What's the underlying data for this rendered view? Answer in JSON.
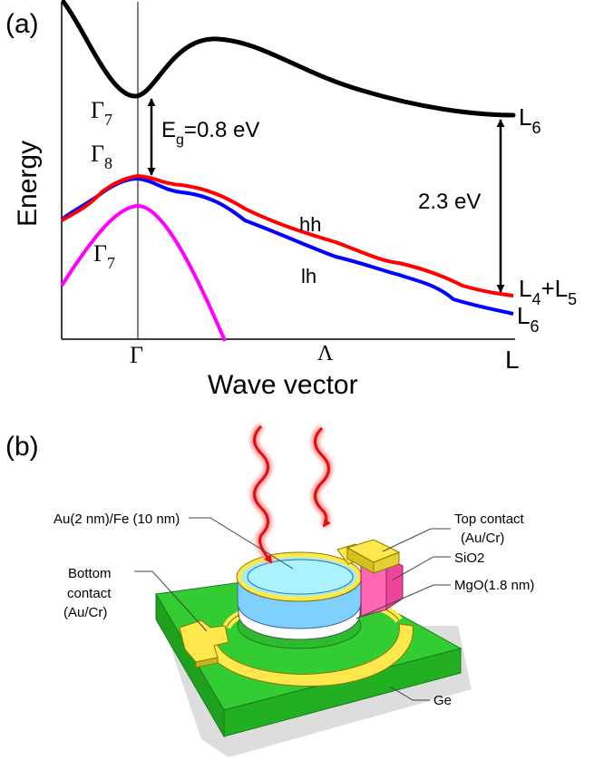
{
  "panel_a": {
    "tag": "(a)",
    "y_axis_label": "Energy",
    "x_axis_label": "Wave vector",
    "x_ticks": {
      "gamma": "Γ",
      "lambda": "Λ",
      "l": "L"
    },
    "gamma7_upper": {
      "sym": "Γ",
      "sub": "7"
    },
    "gamma8": {
      "sym": "Γ",
      "sub": "8"
    },
    "gamma7_lower": {
      "sym": "Γ",
      "sub": "7"
    },
    "gap_label": {
      "main": "E",
      "sub": "g",
      "rest": "=0.8 eV"
    },
    "l_gap_label": "2.3 eV",
    "hh_label": "hh",
    "lh_label": "lh",
    "l6_upper": {
      "main": "L",
      "sub": "6"
    },
    "l4l5": {
      "main1": "L",
      "sub1": "4",
      "plus": "+L",
      "sub2": "5"
    },
    "l6_lower": {
      "main": "L",
      "sub": "6"
    },
    "colors": {
      "conduction": "#000000",
      "hh": "#ff0000",
      "lh": "#0000ff",
      "split_off": "#ff00ff"
    }
  },
  "panel_b": {
    "tag": "(b)",
    "labels": {
      "au_fe": "Au(2 nm)/Fe (10 nm)",
      "bottom_contact_1": "Bottom",
      "bottom_contact_2": "contact",
      "bottom_contact_3": "(Au/Cr)",
      "top_contact_1": "Top contact",
      "top_contact_2": "(Au/Cr)",
      "sio2": "SiO2",
      "mgo": "MgO(1.8 nm)",
      "ge": "Ge"
    },
    "colors": {
      "substrate": "#33cc33",
      "contact": "#ffe84d",
      "sio2": "#ff66b3",
      "fe": "#99eeff",
      "mgo": "#ffffff",
      "light": "#ff2020"
    }
  }
}
